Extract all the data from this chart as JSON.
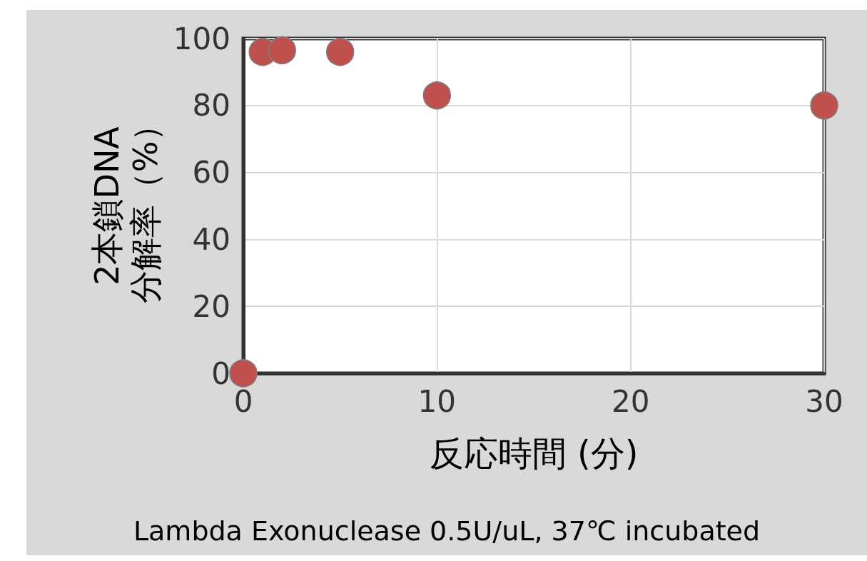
{
  "chart_data": {
    "type": "scatter",
    "xlabel": "反応時間 (分)",
    "ylabel": "2本鎖DNA\n分解率（%）",
    "annotations": [
      "Lambda Exonuclease 0.5U/uL, 37℃ incubated"
    ],
    "x": [
      0,
      1,
      2,
      5,
      10,
      30
    ],
    "series": [
      {
        "color": "#c0504d",
        "values": [
          0,
          96,
          96.5,
          96,
          83,
          80
        ]
      }
    ],
    "xlim": [
      0,
      30
    ],
    "xticks": [
      0,
      10,
      20,
      30
    ],
    "ylim": [
      0,
      100
    ],
    "yticks": [
      0,
      20,
      40,
      60,
      80,
      100
    ],
    "grid": true,
    "marker": "circle"
  }
}
